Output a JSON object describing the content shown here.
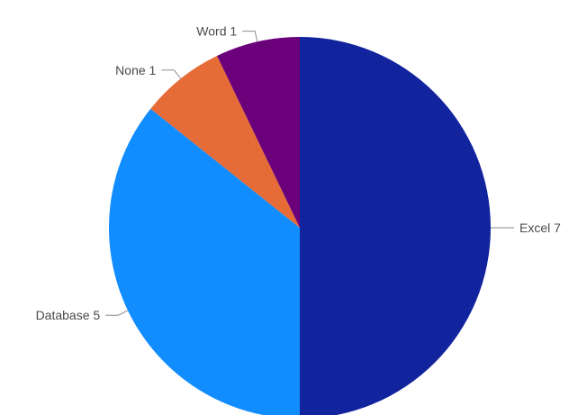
{
  "chart_data": {
    "type": "pie",
    "slices": [
      {
        "category": "Excel",
        "value": 7,
        "label": "Excel 7",
        "color": "#12239e"
      },
      {
        "category": "Database",
        "value": 5,
        "label": "Database 5",
        "color": "#118dff"
      },
      {
        "category": "None",
        "value": 1,
        "label": "None 1",
        "color": "#e66c37"
      },
      {
        "category": "Word",
        "value": 1,
        "label": "Word 1",
        "color": "#6b007b"
      }
    ],
    "start_angle_deg": 0,
    "direction": "clockwise",
    "legend": "none",
    "data_labels": "outside"
  }
}
